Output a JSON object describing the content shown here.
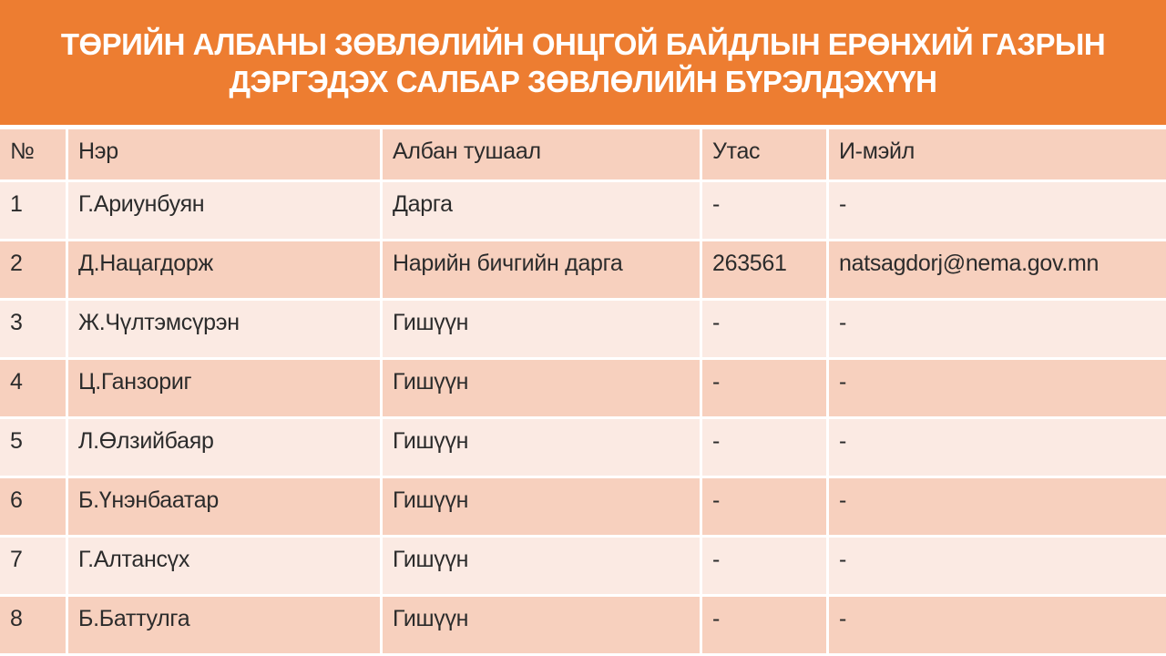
{
  "title": {
    "line1": "ТӨРИЙН АЛБАНЫ ЗӨВЛӨЛИЙН ОНЦГОЙ БАЙДЛЫН ЕРӨНХИЙ ГАЗРЫН",
    "line2": "ДЭРГЭДЭХ САЛБАР ЗӨВЛӨЛИЙН БҮРЭЛДЭХҮҮН"
  },
  "table": {
    "columns": [
      "№",
      "Нэр",
      "Албан тушаал",
      "Утас",
      "И-мэйл"
    ],
    "rows": [
      [
        "1",
        "Г.Ариунбуян",
        "Дарга",
        "-",
        "-"
      ],
      [
        "2",
        "Д.Нацагдорж",
        "Нарийн бичгийн дарга",
        "263561",
        "natsagdorj@nema.gov.mn"
      ],
      [
        "3",
        "Ж.Чүлтэмсүрэн",
        "Гишүүн",
        "-",
        "-"
      ],
      [
        "4",
        "Ц.Ганзориг",
        "Гишүүн",
        "-",
        "-"
      ],
      [
        "5",
        "Л.Өлзийбаяр",
        "Гишүүн",
        "-",
        "-"
      ],
      [
        "6",
        "Б.Үнэнбаатар",
        "Гишүүн",
        "-",
        "-"
      ],
      [
        "7",
        "Г.Алтансүх",
        "Гишүүн",
        "-",
        "-"
      ],
      [
        "8",
        "Б.Баттулга",
        "Гишүүн",
        "-",
        "-"
      ]
    ]
  },
  "colors": {
    "banner": "#ED7D31",
    "row_dark": "#F7D0BE",
    "row_light": "#FBEAE3",
    "text": "#2b2b2b",
    "title_text": "#FFFFFF"
  }
}
